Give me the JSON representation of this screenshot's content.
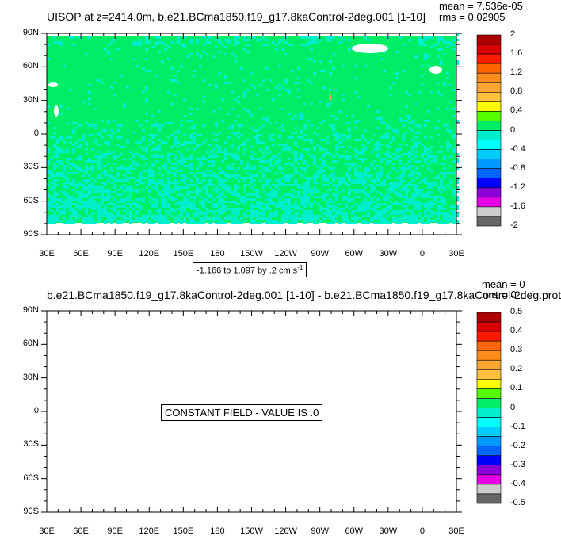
{
  "chart_data": [
    {
      "type": "heatmap",
      "title": "UISOP at z=2414.0m, b.e21.BCma1850.f19_g17.8kaControl-2deg.001 [1-10]",
      "stats": {
        "mean": "mean = 7.536e-05",
        "rms": "rms = 0.02905"
      },
      "x_ticks": [
        "30E",
        "60E",
        "90E",
        "120E",
        "150E",
        "180",
        "150W",
        "120W",
        "90W",
        "60W",
        "30W",
        "0",
        "30E"
      ],
      "y_ticks": [
        "90N",
        "60N",
        "30N",
        "0",
        "30S",
        "60S",
        "90S"
      ],
      "xlim": [
        30,
        390
      ],
      "ylim": [
        -90,
        90
      ],
      "colorbar_labels": [
        "2",
        "1.6",
        "1.2",
        "0.8",
        "0.4",
        "0",
        "-0.4",
        "-0.8",
        "-1.2",
        "-1.6",
        "-2"
      ],
      "colorbar_colors": [
        "#ac0000",
        "#d70000",
        "#ff1a00",
        "#ff6600",
        "#ff8c1a",
        "#ffa533",
        "#ffbf40",
        "#ffff00",
        "#55ff00",
        "#00ee66",
        "#00eecc",
        "#00ffff",
        "#00ccff",
        "#0099ff",
        "#0066ff",
        "#0000ff",
        "#8a00d6",
        "#e600e6",
        "#cccccc",
        "#666666"
      ],
      "dominant_color": "#00ee66",
      "secondary_color": "#00eecc",
      "contour_info": "-1.166 to 1.097 by .2 cm s",
      "contour_info_sup": "-1",
      "grid": false
    },
    {
      "type": "heatmap",
      "title": "b.e21.BCma1850.f19_g17.8kaControl-2deg.001 [1-10] - b.e21.BCma1850.f19_g17.8kaControl-2deg.prot",
      "stats": {
        "mean": "mean = 0",
        "rms": "rms = 0"
      },
      "x_ticks": [
        "30E",
        "60E",
        "90E",
        "120E",
        "150E",
        "180",
        "150W",
        "120W",
        "90W",
        "60W",
        "30W",
        "0",
        "30E"
      ],
      "y_ticks": [
        "90N",
        "60N",
        "30N",
        "0",
        "30S",
        "60S",
        "90S"
      ],
      "xlim": [
        30,
        390
      ],
      "ylim": [
        -90,
        90
      ],
      "colorbar_labels": [
        "0.5",
        "0.4",
        "0.3",
        "0.2",
        "0.1",
        "0",
        "-0.1",
        "-0.2",
        "-0.3",
        "-0.4",
        "-0.5"
      ],
      "colorbar_colors": [
        "#ac0000",
        "#d70000",
        "#ff1a00",
        "#ff6600",
        "#ff8c1a",
        "#ffa533",
        "#ffbf40",
        "#ffff00",
        "#55ff00",
        "#00ee66",
        "#00eecc",
        "#00ffff",
        "#00ccff",
        "#0099ff",
        "#0066ff",
        "#0000ff",
        "#8a00d6",
        "#e600e6",
        "#cccccc",
        "#666666"
      ],
      "annotation": "CONSTANT FIELD - VALUE IS .0",
      "grid": false
    }
  ]
}
